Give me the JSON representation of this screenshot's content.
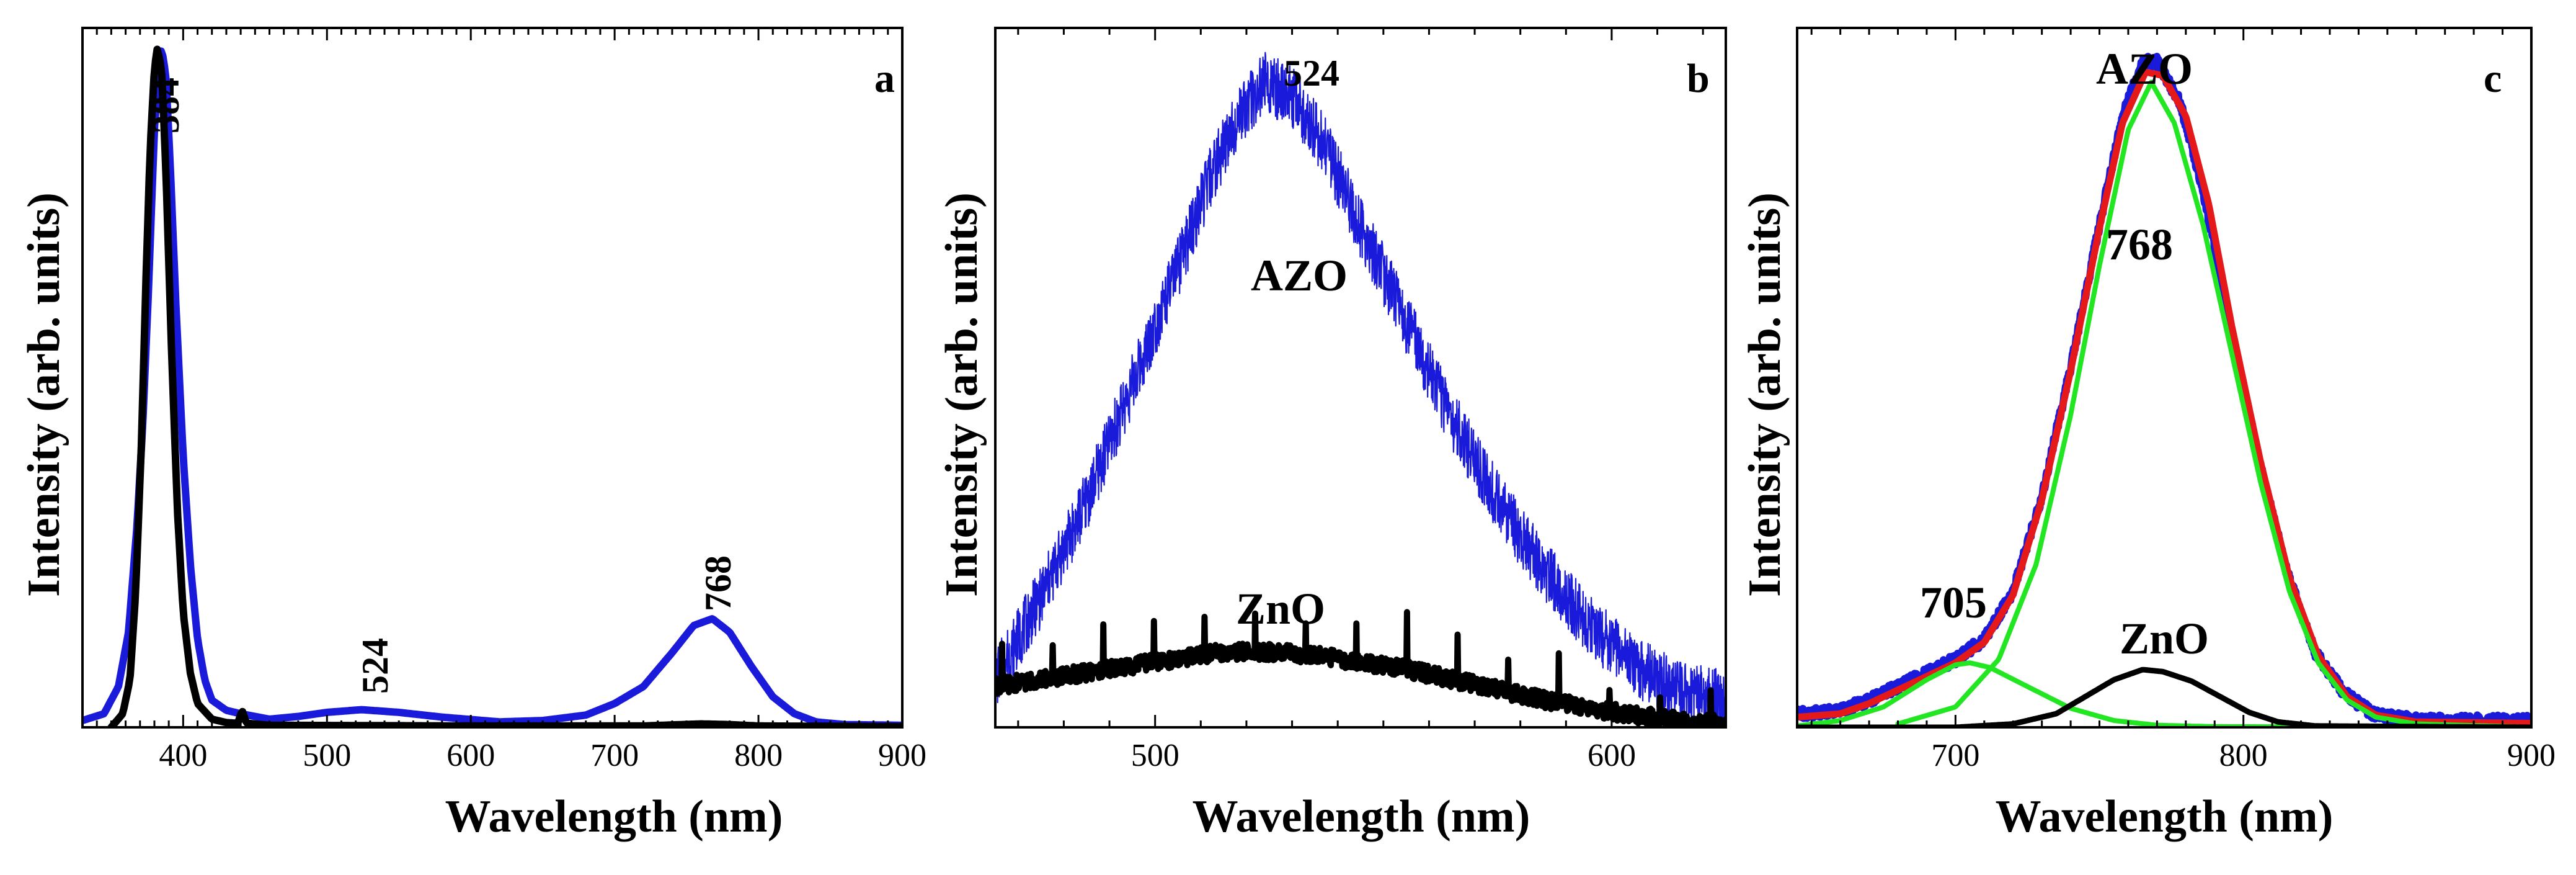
{
  "chart_data": [
    {
      "panel": "a",
      "type": "line",
      "xlabel": "Wavelength (nm)",
      "ylabel": "Intensity (arb. units)",
      "xlim": [
        330,
        900
      ],
      "ylim": [
        0,
        1.03
      ],
      "xticks": [
        400,
        500,
        600,
        700,
        800,
        900
      ],
      "xtick_labels": [
        "400",
        "500",
        "600",
        "700",
        "800",
        "900"
      ],
      "series": [
        {
          "name": "AZO",
          "color": "#1a1adb",
          "points": [
            [
              330,
              0.01
            ],
            [
              345,
              0.02
            ],
            [
              355,
              0.06
            ],
            [
              362,
              0.14
            ],
            [
              368,
              0.3
            ],
            [
              372,
              0.45
            ],
            [
              376,
              0.65
            ],
            [
              380,
              0.88
            ],
            [
              383,
              0.97
            ],
            [
              385,
              1.0
            ],
            [
              388,
              0.96
            ],
            [
              391,
              0.83
            ],
            [
              395,
              0.62
            ],
            [
              400,
              0.4
            ],
            [
              405,
              0.24
            ],
            [
              410,
              0.13
            ],
            [
              415,
              0.07
            ],
            [
              420,
              0.04
            ],
            [
              430,
              0.025
            ],
            [
              440,
              0.02
            ],
            [
              460,
              0.012
            ],
            [
              480,
              0.016
            ],
            [
              500,
              0.022
            ],
            [
              524,
              0.026
            ],
            [
              550,
              0.022
            ],
            [
              580,
              0.015
            ],
            [
              620,
              0.008
            ],
            [
              650,
              0.01
            ],
            [
              680,
              0.018
            ],
            [
              700,
              0.035
            ],
            [
              720,
              0.06
            ],
            [
              740,
              0.11
            ],
            [
              755,
              0.15
            ],
            [
              768,
              0.16
            ],
            [
              780,
              0.14
            ],
            [
              795,
              0.09
            ],
            [
              810,
              0.045
            ],
            [
              825,
              0.02
            ],
            [
              840,
              0.008
            ],
            [
              860,
              0.004
            ],
            [
              900,
              0.003
            ]
          ]
        },
        {
          "name": "ZnO",
          "color": "#000000",
          "points": [
            [
              350,
              0.0
            ],
            [
              358,
              0.02
            ],
            [
              363,
              0.07
            ],
            [
              367,
              0.2
            ],
            [
              371,
              0.42
            ],
            [
              374,
              0.65
            ],
            [
              377,
              0.85
            ],
            [
              380,
              0.97
            ],
            [
              382,
              1.0
            ],
            [
              385,
              0.97
            ],
            [
              388,
              0.82
            ],
            [
              392,
              0.55
            ],
            [
              396,
              0.32
            ],
            [
              400,
              0.17
            ],
            [
              405,
              0.08
            ],
            [
              410,
              0.035
            ],
            [
              420,
              0.012
            ],
            [
              430,
              0.007
            ],
            [
              438,
              0.006
            ],
            [
              441,
              0.025
            ],
            [
              444,
              0.006
            ],
            [
              460,
              0.003
            ],
            [
              600,
              0.002
            ],
            [
              720,
              0.002
            ],
            [
              760,
              0.005
            ],
            [
              780,
              0.004
            ],
            [
              800,
              0.002
            ],
            [
              900,
              0.001
            ]
          ]
        }
      ],
      "annotations": [
        "384",
        "524",
        "768"
      ],
      "panel_label": "a"
    },
    {
      "panel": "b",
      "type": "line",
      "xlabel": "Wavelength (nm)",
      "ylabel": "Intensity (arb. units)",
      "xlim": [
        465,
        625
      ],
      "ylim": [
        0,
        1.02
      ],
      "xticks": [
        500,
        600
      ],
      "xtick_labels": [
        "500",
        "600"
      ],
      "series": [
        {
          "name": "AZO",
          "color": "#1a1adb",
          "points": [
            [
              465,
              0.07
            ],
            [
              475,
              0.19
            ],
            [
              485,
              0.33
            ],
            [
              495,
              0.5
            ],
            [
              505,
              0.67
            ],
            [
              512,
              0.8
            ],
            [
              518,
              0.89
            ],
            [
              524,
              0.94
            ],
            [
              530,
              0.92
            ],
            [
              537,
              0.85
            ],
            [
              545,
              0.73
            ],
            [
              555,
              0.59
            ],
            [
              565,
              0.45
            ],
            [
              575,
              0.33
            ],
            [
              585,
              0.23
            ],
            [
              595,
              0.15
            ],
            [
              605,
              0.09
            ],
            [
              615,
              0.05
            ],
            [
              625,
              0.04
            ]
          ]
        },
        {
          "name": "ZnO",
          "color": "#000000",
          "points": [
            [
              465,
              0.06
            ],
            [
              480,
              0.075
            ],
            [
              495,
              0.09
            ],
            [
              505,
              0.1
            ],
            [
              515,
              0.11
            ],
            [
              525,
              0.11
            ],
            [
              535,
              0.105
            ],
            [
              545,
              0.095
            ],
            [
              555,
              0.085
            ],
            [
              565,
              0.07
            ],
            [
              575,
              0.055
            ],
            [
              585,
              0.04
            ],
            [
              595,
              0.028
            ],
            [
              605,
              0.018
            ],
            [
              615,
              0.01
            ],
            [
              625,
              0.005
            ]
          ]
        }
      ],
      "annotations": [
        "524",
        "AZO",
        "ZnO"
      ],
      "panel_label": "b"
    },
    {
      "panel": "c",
      "type": "line",
      "xlabel": "Wavelength (nm)",
      "ylabel": "Intensity (arb. units)",
      "xlim": [
        645,
        900
      ],
      "ylim": [
        0,
        1.03
      ],
      "xticks": [
        700,
        800,
        900
      ],
      "xtick_labels": [
        "700",
        "800",
        "900"
      ],
      "series": [
        {
          "name": "AZO data",
          "color": "#1a1adb",
          "points": [
            [
              645,
              0.02
            ],
            [
              660,
              0.025
            ],
            [
              670,
              0.04
            ],
            [
              680,
              0.06
            ],
            [
              690,
              0.08
            ],
            [
              700,
              0.1
            ],
            [
              710,
              0.13
            ],
            [
              720,
              0.2
            ],
            [
              730,
              0.34
            ],
            [
              740,
              0.53
            ],
            [
              750,
              0.74
            ],
            [
              758,
              0.9
            ],
            [
              765,
              0.98
            ],
            [
              770,
              0.98
            ],
            [
              778,
              0.92
            ],
            [
              786,
              0.79
            ],
            [
              795,
              0.6
            ],
            [
              805,
              0.4
            ],
            [
              815,
              0.23
            ],
            [
              825,
              0.11
            ],
            [
              835,
              0.05
            ],
            [
              845,
              0.02
            ],
            [
              860,
              0.01
            ],
            [
              900,
              0.01
            ]
          ]
        },
        {
          "name": "Fit",
          "color": "#e51919",
          "points": [
            [
              645,
              0.015
            ],
            [
              660,
              0.02
            ],
            [
              670,
              0.035
            ],
            [
              680,
              0.055
            ],
            [
              690,
              0.075
            ],
            [
              700,
              0.095
            ],
            [
              710,
              0.125
            ],
            [
              720,
              0.195
            ],
            [
              730,
              0.335
            ],
            [
              740,
              0.525
            ],
            [
              750,
              0.735
            ],
            [
              758,
              0.89
            ],
            [
              766,
              0.965
            ],
            [
              772,
              0.96
            ],
            [
              780,
              0.9
            ],
            [
              788,
              0.77
            ],
            [
              796,
              0.59
            ],
            [
              806,
              0.39
            ],
            [
              816,
              0.22
            ],
            [
              826,
              0.105
            ],
            [
              836,
              0.045
            ],
            [
              846,
              0.018
            ],
            [
              860,
              0.008
            ],
            [
              900,
              0.006
            ]
          ]
        },
        {
          "name": "705 component",
          "color": "#22e622",
          "points": [
            [
              645,
              0.002
            ],
            [
              660,
              0.01
            ],
            [
              675,
              0.03
            ],
            [
              690,
              0.07
            ],
            [
              700,
              0.092
            ],
            [
              705,
              0.095
            ],
            [
              712,
              0.088
            ],
            [
              725,
              0.06
            ],
            [
              740,
              0.028
            ],
            [
              755,
              0.01
            ],
            [
              770,
              0.003
            ],
            [
              790,
              0.001
            ],
            [
              900,
              0.0
            ]
          ]
        },
        {
          "name": "768 component",
          "color": "#22e622",
          "points": [
            [
              680,
              0.005
            ],
            [
              700,
              0.03
            ],
            [
              715,
              0.1
            ],
            [
              728,
              0.24
            ],
            [
              740,
              0.46
            ],
            [
              750,
              0.68
            ],
            [
              760,
              0.88
            ],
            [
              768,
              0.95
            ],
            [
              776,
              0.89
            ],
            [
              786,
              0.74
            ],
            [
              796,
              0.55
            ],
            [
              806,
              0.36
            ],
            [
              816,
              0.2
            ],
            [
              826,
              0.095
            ],
            [
              836,
              0.04
            ],
            [
              846,
              0.015
            ],
            [
              860,
              0.005
            ],
            [
              900,
              0.0
            ]
          ]
        },
        {
          "name": "ZnO",
          "color": "#000000",
          "points": [
            [
              645,
              0.0
            ],
            [
              700,
              0.0
            ],
            [
              720,
              0.005
            ],
            [
              735,
              0.02
            ],
            [
              745,
              0.045
            ],
            [
              755,
              0.07
            ],
            [
              765,
              0.085
            ],
            [
              772,
              0.082
            ],
            [
              782,
              0.068
            ],
            [
              792,
              0.045
            ],
            [
              802,
              0.022
            ],
            [
              812,
              0.008
            ],
            [
              825,
              0.002
            ],
            [
              900,
              0.0
            ]
          ]
        }
      ],
      "annotations": [
        "AZO",
        "768",
        "705",
        "ZnO"
      ],
      "panel_label": "c"
    }
  ]
}
